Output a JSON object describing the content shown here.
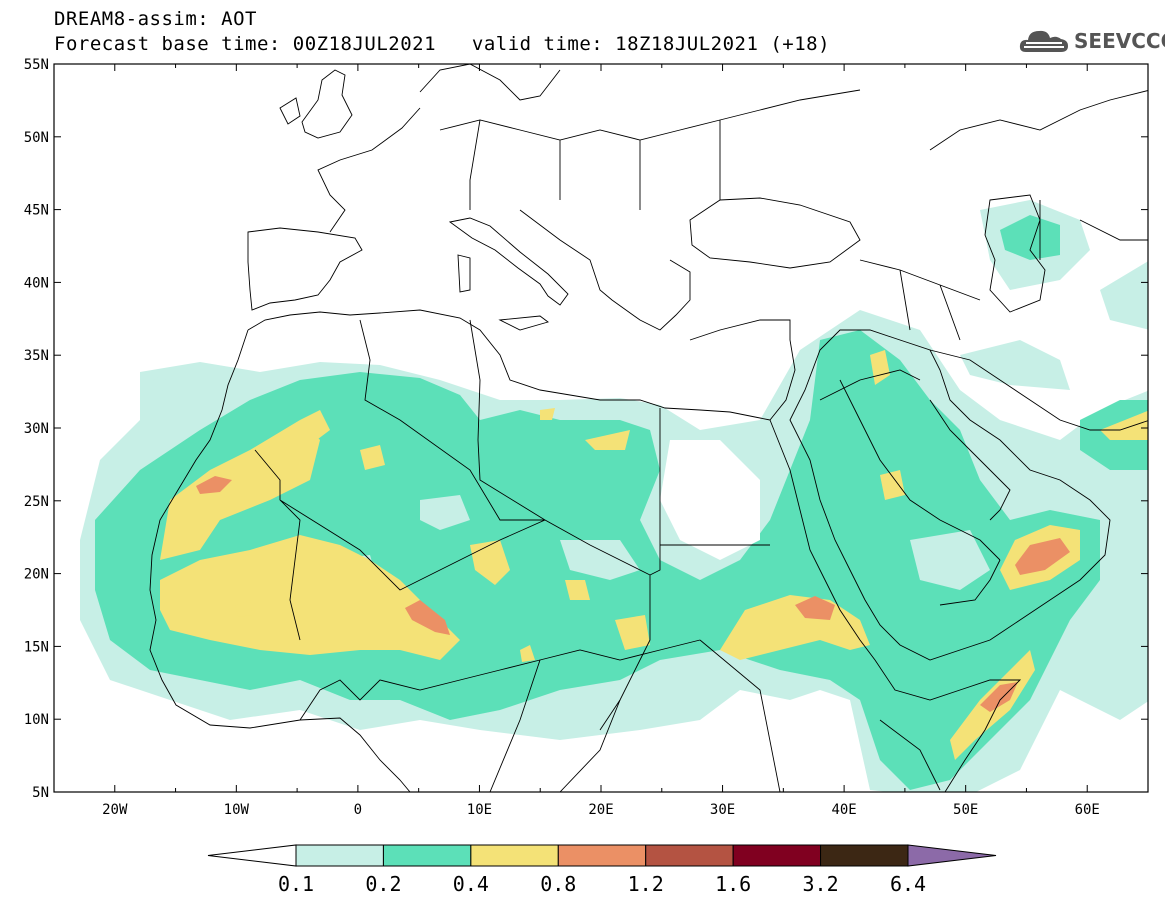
{
  "title": {
    "line1": "DREAM8-assim: AOT",
    "base_time": "Forecast base time: 00Z18JUL2021",
    "valid_time": "valid time: 18Z18JUL2021 (+18)"
  },
  "logo": {
    "text": "SEEVCCC",
    "icon": "cloud-icon"
  },
  "map": {
    "lon_range": [
      -25,
      65
    ],
    "lat_range": [
      5,
      55
    ],
    "lon_ticks": [
      "20W",
      "10W",
      "0",
      "10E",
      "20E",
      "30E",
      "40E",
      "50E",
      "60E"
    ],
    "lat_ticks": [
      "5N",
      "10N",
      "15N",
      "20N",
      "25N",
      "30N",
      "35N",
      "40N",
      "45N",
      "50N",
      "55N"
    ]
  },
  "colorbar": {
    "levels": [
      "0.1",
      "0.2",
      "0.4",
      "0.8",
      "1.2",
      "1.6",
      "3.2",
      "6.4"
    ],
    "colors": [
      "#ffffff",
      "#c7efe6",
      "#5ce0b8",
      "#f4e277",
      "#eb9065",
      "#b45342",
      "#800020",
      "#3c2714",
      "#8c6aa8"
    ]
  }
}
